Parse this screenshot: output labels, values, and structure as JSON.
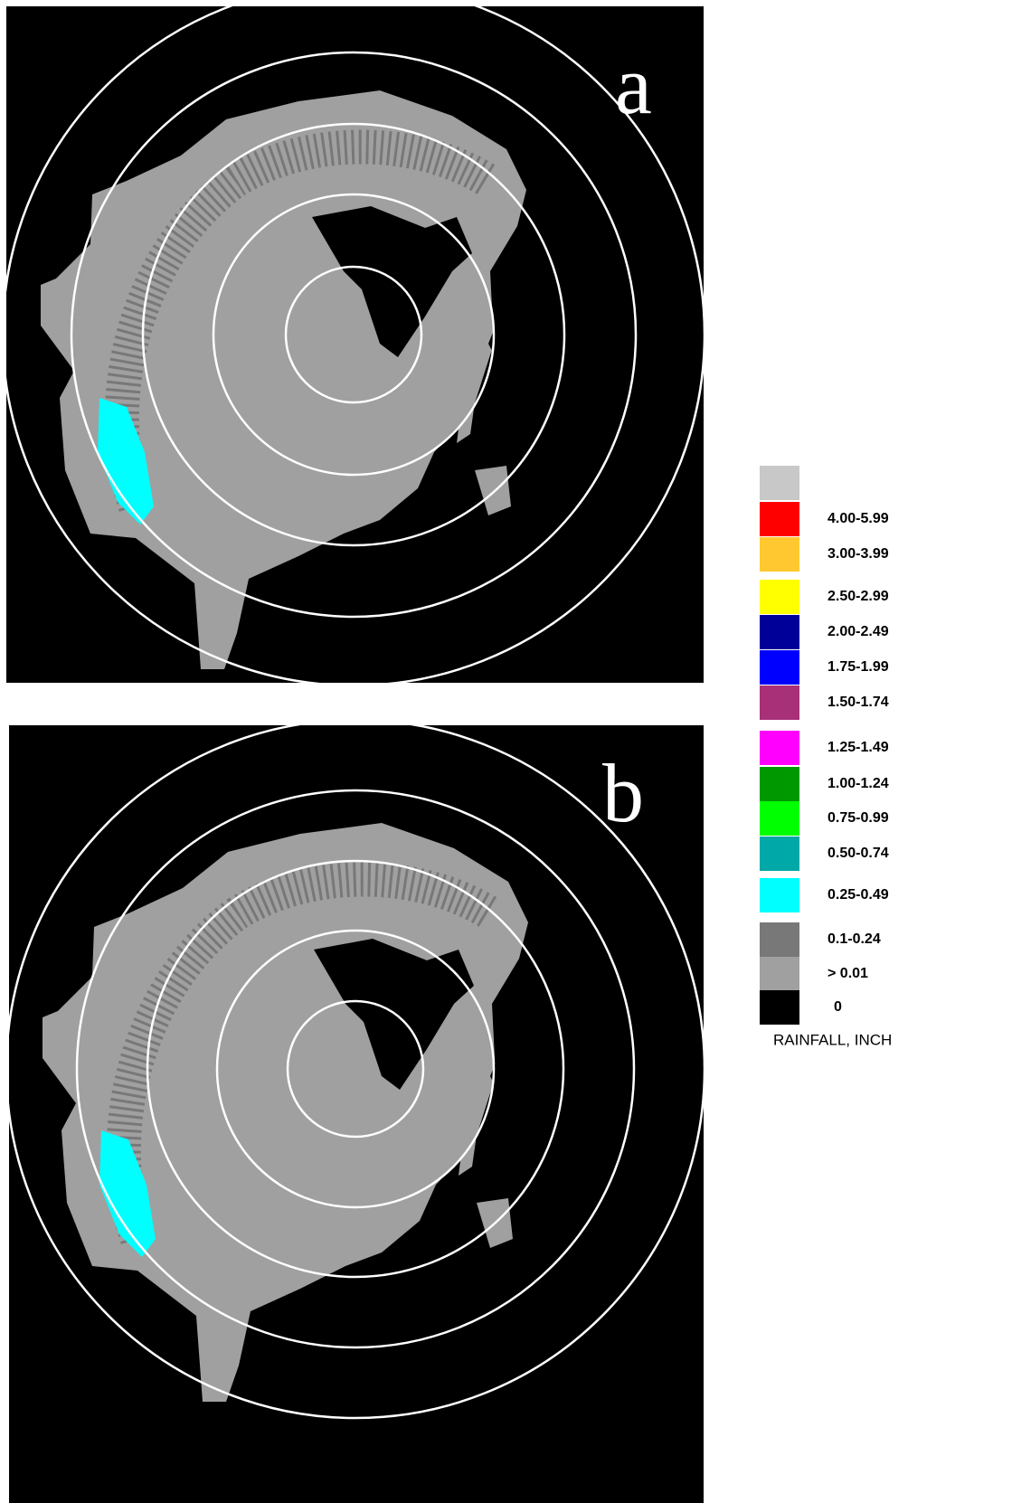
{
  "panels": [
    {
      "label": "a"
    },
    {
      "label": "b"
    }
  ],
  "legend": {
    "title": "RAINFALL, INCH",
    "items": [
      {
        "color": "#c8c8c8"
      },
      {
        "label": "4.00-5.99",
        "color": "#ff0000"
      },
      {
        "label": "3.00-3.99",
        "color": "#ffc830"
      },
      {
        "label": "2.50-2.99",
        "color": "#ffff00"
      },
      {
        "label": "2.00-2.49",
        "color": "#000098"
      },
      {
        "label": "1.75-1.99",
        "color": "#0000ff"
      },
      {
        "label": "1.50-1.74",
        "color": "#a83078"
      },
      {
        "label": "1.25-1.49",
        "color": "#ff00ff"
      },
      {
        "label": "1.00-1.24",
        "color": "#009800"
      },
      {
        "label": "0.75-0.99",
        "color": "#00ff00"
      },
      {
        "label": "0.50-0.74",
        "color": "#00a8a8"
      },
      {
        "label": "0.25-0.49",
        "color": "#00ffff"
      },
      {
        "label": "0.1-0.24",
        "color": "#787878"
      },
      {
        "label": "> 0.01",
        "color": "#a0a0a0"
      },
      {
        "label": "0",
        "color": "#000000"
      }
    ]
  }
}
